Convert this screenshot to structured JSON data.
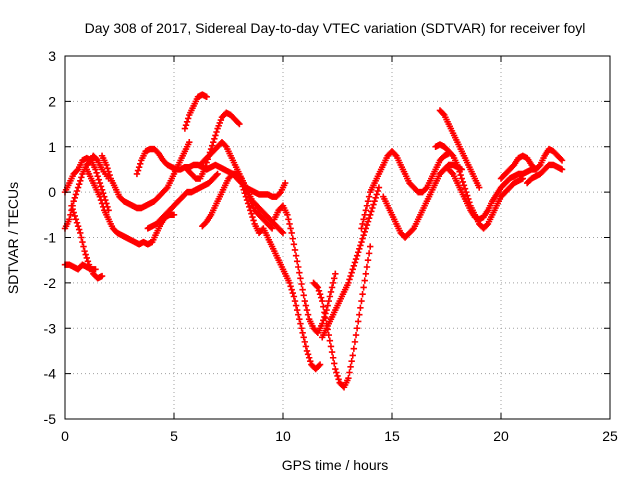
{
  "chart_data": {
    "type": "scatter",
    "title": "Day 308 of 2017, Sidereal Day-to-day VTEC variation (SDTVAR) for receiver foyl",
    "xlabel": "GPS time / hours",
    "ylabel": "SDTVAR / TECUs",
    "xlim": [
      0,
      25
    ],
    "ylim": [
      -5,
      3
    ],
    "xticks": [
      "0",
      "5",
      "10",
      "15",
      "20",
      "25"
    ],
    "yticks": [
      "-5",
      "-4",
      "-3",
      "-2",
      "-1",
      "0",
      "1",
      "2",
      "3"
    ],
    "grid": true,
    "marker": "+",
    "color": "#ff0000",
    "series": [
      {
        "x": [
          0.0,
          0.2,
          0.4,
          0.6,
          0.8,
          1.0,
          1.2,
          1.4
        ],
        "y": [
          -1.6,
          -1.6,
          -1.65,
          -1.7,
          -1.6,
          -1.65,
          -1.7,
          -1.7
        ]
      },
      {
        "x": [
          0.0,
          0.2,
          0.4,
          0.6,
          0.8,
          1.0,
          1.2,
          1.3,
          1.5,
          1.7,
          2.0
        ],
        "y": [
          -0.8,
          -0.6,
          -0.2,
          0.1,
          0.4,
          0.6,
          0.7,
          0.8,
          0.7,
          0.5,
          0.3
        ]
      },
      {
        "x": [
          0.0,
          0.2,
          0.4,
          0.6,
          0.8,
          1.0,
          1.2,
          1.4,
          1.6,
          1.8,
          2.0
        ],
        "y": [
          0.0,
          0.2,
          0.4,
          0.5,
          0.7,
          0.75,
          0.7,
          0.5,
          0.2,
          -0.1,
          -0.4
        ]
      },
      {
        "x": [
          0.3,
          0.5,
          0.7,
          0.9,
          1.1,
          1.3,
          1.5,
          1.7
        ],
        "y": [
          -0.3,
          -0.6,
          -0.9,
          -1.3,
          -1.6,
          -1.8,
          -1.9,
          -1.85
        ]
      },
      {
        "x": [
          1.0,
          1.2,
          1.4,
          1.6,
          1.8,
          2.0,
          2.2,
          2.4,
          2.6,
          2.8,
          3.0,
          3.2,
          3.4,
          3.6,
          3.8,
          4.0,
          4.2,
          4.4,
          4.6,
          4.8,
          5.0
        ],
        "y": [
          0.5,
          0.3,
          0.1,
          -0.1,
          -0.4,
          -0.6,
          -0.8,
          -0.9,
          -0.95,
          -1.0,
          -1.05,
          -1.1,
          -1.15,
          -1.1,
          -1.15,
          -1.1,
          -0.9,
          -0.7,
          -0.55,
          -0.5,
          -0.5
        ]
      },
      {
        "x": [
          1.7,
          1.9,
          2.1,
          2.3,
          2.5,
          2.7,
          2.9,
          3.1,
          3.3,
          3.5,
          3.7,
          3.9,
          4.1,
          4.3,
          4.5,
          4.7,
          4.9,
          5.1,
          5.3,
          5.5,
          5.7
        ],
        "y": [
          0.8,
          0.6,
          0.3,
          0.1,
          -0.1,
          -0.2,
          -0.25,
          -0.3,
          -0.35,
          -0.35,
          -0.3,
          -0.25,
          -0.2,
          -0.1,
          0.0,
          0.1,
          0.3,
          0.5,
          0.7,
          0.9,
          1.1
        ]
      },
      {
        "x": [
          5.5,
          5.7,
          5.9,
          6.1,
          6.3,
          6.5
        ],
        "y": [
          1.4,
          1.7,
          1.9,
          2.1,
          2.15,
          2.1
        ]
      },
      {
        "x": [
          3.3,
          3.5,
          3.7,
          3.9,
          4.1,
          4.3,
          4.5,
          4.7,
          4.9,
          5.1,
          5.3,
          5.5,
          5.7,
          5.9,
          6.1,
          6.3,
          6.5
        ],
        "y": [
          0.4,
          0.7,
          0.9,
          0.95,
          0.95,
          0.85,
          0.7,
          0.6,
          0.55,
          0.5,
          0.5,
          0.55,
          0.55,
          0.6,
          0.6,
          0.55,
          0.5
        ]
      },
      {
        "x": [
          6.5,
          6.7,
          6.9,
          7.1,
          7.3,
          7.5,
          7.7,
          7.9,
          8.1,
          8.3,
          8.5,
          8.7,
          8.9,
          9.1,
          9.3,
          9.5,
          9.7,
          9.9,
          10.1
        ],
        "y": [
          0.5,
          0.55,
          0.6,
          0.55,
          0.5,
          0.45,
          0.4,
          0.3,
          0.2,
          0.1,
          0.05,
          0.0,
          -0.05,
          -0.05,
          -0.05,
          -0.1,
          -0.1,
          0.0,
          0.2
        ]
      },
      {
        "x": [
          3.8,
          4.0,
          4.2,
          4.4,
          4.6,
          4.8,
          5.0,
          5.2,
          5.4,
          5.6,
          5.8,
          6.0,
          6.2,
          6.4,
          6.6,
          6.8,
          7.0
        ],
        "y": [
          -0.8,
          -0.75,
          -0.7,
          -0.6,
          -0.5,
          -0.4,
          -0.3,
          -0.2,
          -0.1,
          0.0,
          0.0,
          0.05,
          0.1,
          0.15,
          0.2,
          0.3,
          0.4
        ]
      },
      {
        "x": [
          5.6,
          5.8,
          6.0,
          6.2,
          6.4,
          6.6,
          6.8,
          7.0,
          7.2,
          7.4,
          7.6,
          7.8,
          8.0
        ],
        "y": [
          0.5,
          0.4,
          0.3,
          0.3,
          0.5,
          0.8,
          1.1,
          1.4,
          1.65,
          1.75,
          1.7,
          1.6,
          1.5
        ]
      },
      {
        "x": [
          6.2,
          6.4,
          6.6,
          6.8,
          7.0,
          7.2,
          7.4,
          7.6,
          7.8,
          8.0,
          8.2,
          8.4,
          8.6,
          8.8,
          9.0,
          9.2,
          9.4,
          9.6,
          9.8,
          10.0
        ],
        "y": [
          0.6,
          0.7,
          0.8,
          0.9,
          1.0,
          1.1,
          1.0,
          0.8,
          0.6,
          0.4,
          0.2,
          0.0,
          -0.2,
          -0.3,
          -0.4,
          -0.5,
          -0.6,
          -0.7,
          -0.8,
          -0.9
        ]
      },
      {
        "x": [
          6.3,
          6.5,
          6.7,
          6.9,
          7.1,
          7.3,
          7.5,
          7.7,
          7.9,
          8.1,
          8.3,
          8.5,
          8.7,
          8.9,
          9.1,
          9.3,
          9.5
        ],
        "y": [
          -0.75,
          -0.65,
          -0.5,
          -0.3,
          -0.1,
          0.1,
          0.3,
          0.4,
          0.4,
          0.3,
          0.1,
          -0.2,
          -0.4,
          -0.5,
          -0.6,
          -0.7,
          -0.8
        ]
      },
      {
        "x": [
          7.9,
          8.1,
          8.3,
          8.5,
          8.7,
          8.9,
          9.1,
          9.3,
          9.5,
          9.7,
          9.9,
          10.1,
          10.3,
          10.5,
          10.7,
          10.9,
          11.1,
          11.3,
          11.5,
          11.7
        ],
        "y": [
          0.4,
          0.2,
          -0.1,
          -0.4,
          -0.7,
          -0.9,
          -0.8,
          -1.0,
          -1.2,
          -1.4,
          -1.6,
          -1.8,
          -2.0,
          -2.3,
          -2.7,
          -3.1,
          -3.5,
          -3.8,
          -3.9,
          -3.8
        ]
      },
      {
        "x": [
          9.6,
          9.8,
          10.0,
          10.2,
          10.4,
          10.6,
          10.8,
          11.0,
          11.2,
          11.4,
          11.6,
          11.8,
          12.0,
          12.2,
          12.4
        ],
        "y": [
          -0.6,
          -0.4,
          -0.3,
          -0.5,
          -0.9,
          -1.4,
          -1.9,
          -2.4,
          -2.8,
          -3.0,
          -3.1,
          -2.9,
          -2.6,
          -2.2,
          -1.8
        ]
      },
      {
        "x": [
          11.4,
          11.6,
          11.8,
          12.0,
          12.2,
          12.4,
          12.6,
          12.8,
          13.0,
          13.2,
          13.4,
          13.6,
          13.8,
          14.0
        ],
        "y": [
          -2.0,
          -2.1,
          -2.4,
          -2.9,
          -3.4,
          -3.9,
          -4.2,
          -4.3,
          -4.1,
          -3.6,
          -3.0,
          -2.4,
          -1.8,
          -1.2
        ]
      },
      {
        "x": [
          11.8,
          12.0,
          12.2,
          12.4,
          12.6,
          12.8,
          13.0,
          13.2,
          13.4,
          13.6,
          13.8,
          14.0,
          14.2,
          14.4
        ],
        "y": [
          -3.2,
          -3.0,
          -2.8,
          -2.6,
          -2.4,
          -2.2,
          -2.0,
          -1.7,
          -1.4,
          -1.1,
          -0.8,
          -0.5,
          -0.2,
          0.1
        ]
      },
      {
        "x": [
          13.6,
          13.8,
          14.0,
          14.2,
          14.4,
          14.6,
          14.8,
          15.0,
          15.2,
          15.4,
          15.6,
          15.8,
          16.0,
          16.2,
          16.4,
          16.6,
          16.8,
          17.0,
          17.2,
          17.4,
          17.6
        ],
        "y": [
          -0.8,
          -0.4,
          0.0,
          0.2,
          0.4,
          0.6,
          0.8,
          0.9,
          0.8,
          0.6,
          0.4,
          0.2,
          0.1,
          0.0,
          0.0,
          0.1,
          0.3,
          0.5,
          0.7,
          0.8,
          0.85
        ]
      },
      {
        "x": [
          14.6,
          14.8,
          15.0,
          15.2,
          15.4,
          15.6,
          15.8,
          16.0,
          16.2,
          16.4,
          16.6,
          16.8,
          17.0,
          17.2,
          17.4,
          17.6,
          17.8,
          18.0,
          18.2
        ],
        "y": [
          -0.1,
          -0.3,
          -0.5,
          -0.7,
          -0.9,
          -1.0,
          -0.9,
          -0.8,
          -0.6,
          -0.4,
          -0.2,
          0.0,
          0.2,
          0.4,
          0.5,
          0.6,
          0.6,
          0.55,
          0.5
        ]
      },
      {
        "x": [
          17.2,
          17.4,
          17.6,
          17.8,
          18.0,
          18.2,
          18.4,
          18.6,
          18.8,
          19.0
        ],
        "y": [
          1.8,
          1.7,
          1.5,
          1.3,
          1.1,
          0.9,
          0.7,
          0.5,
          0.3,
          0.1
        ]
      },
      {
        "x": [
          17.0,
          17.2,
          17.4,
          17.6,
          17.8,
          18.0,
          18.2,
          18.4,
          18.6,
          18.8,
          19.0,
          19.2,
          19.4,
          19.6,
          19.8,
          20.0,
          20.2,
          20.4,
          20.6,
          20.8,
          21.0
        ],
        "y": [
          1.0,
          1.05,
          1.0,
          0.9,
          0.8,
          0.6,
          0.3,
          0.0,
          -0.3,
          -0.5,
          -0.7,
          -0.8,
          -0.7,
          -0.5,
          -0.3,
          -0.1,
          0.0,
          0.1,
          0.2,
          0.25,
          0.3
        ]
      },
      {
        "x": [
          17.6,
          17.8,
          18.0,
          18.2,
          18.4,
          18.6,
          18.8,
          19.0,
          19.2,
          19.4,
          19.6,
          19.8,
          20.0,
          20.2,
          20.4,
          20.6,
          20.8,
          21.0,
          21.2,
          21.4,
          21.6
        ],
        "y": [
          0.5,
          0.4,
          0.2,
          0.0,
          -0.2,
          -0.4,
          -0.55,
          -0.6,
          -0.55,
          -0.4,
          -0.2,
          -0.05,
          0.1,
          0.2,
          0.3,
          0.35,
          0.4,
          0.4,
          0.45,
          0.5,
          0.5
        ]
      },
      {
        "x": [
          20.0,
          20.2,
          20.4,
          20.6,
          20.8,
          21.0,
          21.2,
          21.4,
          21.6,
          21.8,
          22.0,
          22.2,
          22.4,
          22.6,
          22.8
        ],
        "y": [
          0.3,
          0.4,
          0.5,
          0.6,
          0.75,
          0.8,
          0.75,
          0.6,
          0.5,
          0.6,
          0.8,
          0.95,
          0.9,
          0.8,
          0.7
        ]
      },
      {
        "x": [
          21.2,
          21.4,
          21.6,
          21.8,
          22.0,
          22.2,
          22.4,
          22.6,
          22.8
        ],
        "y": [
          0.2,
          0.3,
          0.35,
          0.4,
          0.5,
          0.6,
          0.6,
          0.55,
          0.5
        ]
      }
    ]
  }
}
